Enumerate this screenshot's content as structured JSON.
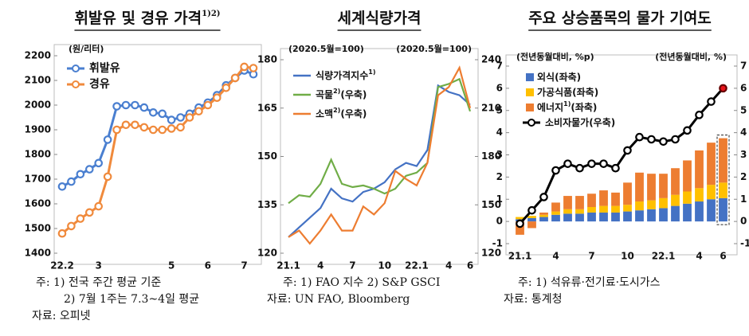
{
  "chart_data": [
    {
      "type": "line",
      "title": "휘발유 및 경유 가격",
      "title_note": "1)2)",
      "y_unit": "(원/리터)",
      "categories": [
        "22.2",
        null,
        null,
        null,
        "3",
        null,
        null,
        null,
        null,
        null,
        null,
        null,
        "5",
        null,
        null,
        null,
        "6",
        null,
        null,
        null,
        "7",
        null
      ],
      "series": [
        {
          "name": "휘발유",
          "color": "#4a7fd0",
          "markers": true,
          "values": [
            1670,
            1690,
            1720,
            1740,
            1765,
            1860,
            1995,
            2000,
            2000,
            1990,
            1970,
            1965,
            1940,
            1950,
            1965,
            1990,
            2010,
            2040,
            2080,
            2110,
            2140,
            2125
          ]
        },
        {
          "name": "경유",
          "color": "#f08a3c",
          "markers": true,
          "values": [
            1480,
            1510,
            1540,
            1565,
            1590,
            1710,
            1900,
            1920,
            1920,
            1910,
            1900,
            1900,
            1905,
            1910,
            1950,
            1975,
            2000,
            2030,
            2070,
            2110,
            2155,
            2150
          ]
        }
      ],
      "ylim": [
        1400,
        2200
      ],
      "yticks": [
        1400,
        1500,
        1600,
        1700,
        1800,
        1900,
        2000,
        2100,
        2200
      ],
      "grid": false,
      "legend": "upper left",
      "notes": [
        "주: 1) 전국 주간 평균 기준",
        "2) 7월 1주는 7.3~4일 평균"
      ],
      "source": "자료: 오피넷"
    },
    {
      "type": "line",
      "title": "세계식량가격",
      "y_unit": "(2020.5월=100)",
      "y2_unit": "(2020.5월=100)",
      "categories": [
        "21.1",
        null,
        null,
        "4",
        null,
        null,
        "7",
        null,
        null,
        "10",
        null,
        null,
        "22.1",
        null,
        null,
        "4",
        null,
        "6"
      ],
      "series": [
        {
          "name": "식량가격지수",
          "note": "1)",
          "color": "#4472c4",
          "values": [
            125,
            128,
            131,
            134,
            140,
            137,
            136,
            139,
            140,
            142,
            146,
            148,
            147,
            152,
            172,
            170,
            169,
            166
          ]
        },
        {
          "name": "곡물",
          "note": "2)",
          "suffix": "(우축)",
          "color": "#70ad47",
          "axis": "y2",
          "values": [
            151,
            156,
            155,
            163,
            178,
            163,
            161,
            162,
            160,
            157,
            160,
            168,
            170,
            176,
            223,
            225,
            228,
            208
          ]
        },
        {
          "name": "소맥",
          "note": "2)",
          "suffix": "(우축)",
          "color": "#ed7d31",
          "axis": "y2",
          "values": [
            130,
            134,
            126,
            134,
            144,
            134,
            134,
            149,
            144,
            151,
            171,
            166,
            162,
            176,
            218,
            223,
            235,
            210
          ]
        }
      ],
      "ylim": [
        120,
        180
      ],
      "yticks": [
        120,
        135,
        150,
        165,
        180
      ],
      "y2lim": [
        120,
        240
      ],
      "y2ticks": [
        120,
        150,
        180,
        210,
        240
      ],
      "grid": false,
      "legend": "upper left",
      "notes": [
        "주: 1) FAO 지수 2) S&P GSCI"
      ],
      "source": "자료: UN FAO, Bloomberg"
    },
    {
      "type": "bar",
      "stacked": true,
      "title": "주요 상승품목의 물가 기여도",
      "y_unit": "(전년동월대비, %p)",
      "y2_unit": "(전년동월대비, %)",
      "categories": [
        "21.1",
        null,
        null,
        "4",
        null,
        null,
        "7",
        null,
        null,
        "10",
        null,
        null,
        "22.1",
        null,
        null,
        "4",
        null,
        "6"
      ],
      "series": [
        {
          "name": "외식(좌축)",
          "color": "#4472c4",
          "values": [
            0.1,
            0.15,
            0.2,
            0.3,
            0.35,
            0.35,
            0.4,
            0.4,
            0.4,
            0.45,
            0.5,
            0.55,
            0.6,
            0.7,
            0.8,
            0.9,
            1.0,
            1.05
          ]
        },
        {
          "name": "가공식품(좌축)",
          "color": "#ffc000",
          "values": [
            0.1,
            0.1,
            0.1,
            0.15,
            0.2,
            0.2,
            0.25,
            0.3,
            0.3,
            0.3,
            0.4,
            0.4,
            0.45,
            0.5,
            0.55,
            0.6,
            0.65,
            0.7
          ]
        },
        {
          "name": "에너지",
          "note": "1)",
          "suffix": "(좌축)",
          "color": "#ed7d31",
          "values": [
            -0.6,
            -0.3,
            0.1,
            0.4,
            0.6,
            0.6,
            0.6,
            0.7,
            0.6,
            1.0,
            1.3,
            1.2,
            1.1,
            1.2,
            1.4,
            1.7,
            1.9,
            2.0
          ]
        },
        {
          "name": "소비자물가(우축)",
          "type": "line",
          "markers": true,
          "color": "#000000",
          "last_color": "#e8141b",
          "axis": "y2",
          "values": [
            -0.1,
            0.5,
            1.1,
            2.3,
            2.6,
            2.4,
            2.6,
            2.6,
            2.4,
            3.2,
            3.8,
            3.7,
            3.6,
            3.7,
            4.1,
            4.8,
            5.4,
            6.0
          ]
        }
      ],
      "ylim": [
        -1,
        7
      ],
      "yticks": [
        -1,
        0,
        1,
        2,
        3,
        4,
        5,
        6,
        7
      ],
      "y2lim": [
        -1,
        7
      ],
      "y2ticks": [
        -1,
        0,
        1,
        2,
        3,
        4,
        5,
        6,
        7
      ],
      "grid": false,
      "legend": "upper left",
      "highlight_last": true,
      "notes": [
        "주: 1) 석유류·전기료·도시가스"
      ],
      "source": "자료: 통계청"
    }
  ]
}
